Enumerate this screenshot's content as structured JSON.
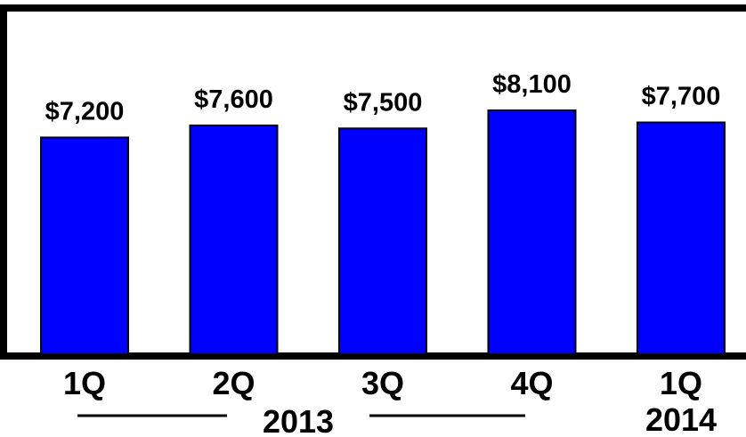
{
  "chart_data": {
    "type": "bar",
    "categories": [
      "1Q",
      "2Q",
      "3Q",
      "4Q",
      "1Q"
    ],
    "values": [
      7200,
      7600,
      7500,
      8100,
      7700
    ],
    "value_labels": [
      "$7,200",
      "$7,600",
      "$7,500",
      "$8,100",
      "$7,700"
    ],
    "year_groups": [
      {
        "label": "2013",
        "categories": [
          0,
          1,
          2,
          3
        ]
      },
      {
        "label": "2014",
        "categories": [
          4
        ]
      }
    ],
    "ylim": [
      0,
      11500
    ],
    "grid": false,
    "legend": "none",
    "colors": {
      "bar": "#0000FF",
      "bar_stroke": "#000000",
      "frame": "#000000",
      "text": "#000000"
    }
  }
}
